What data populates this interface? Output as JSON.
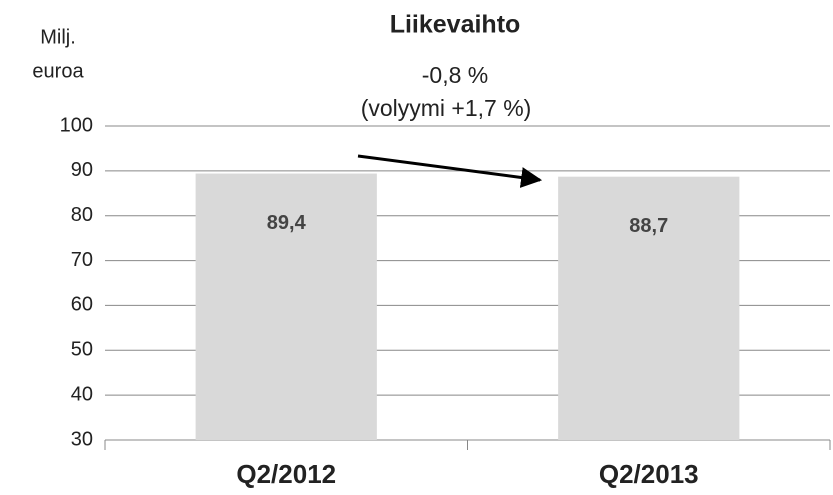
{
  "chart_data": {
    "type": "bar",
    "title": "Liikevaihto",
    "ylabel": [
      "Milj.",
      "euroa"
    ],
    "annotations": [
      "-0,8 %",
      "(volyymi +1,7 %)"
    ],
    "categories": [
      "Q2/2012",
      "Q2/2013"
    ],
    "values": [
      89.4,
      88.7
    ],
    "value_labels": [
      "89,4",
      "88,7"
    ],
    "color": "#d9d9d9",
    "ylim": [
      30,
      100
    ],
    "yticks": [
      30,
      40,
      50,
      60,
      70,
      80,
      90,
      100
    ],
    "grid": true
  }
}
